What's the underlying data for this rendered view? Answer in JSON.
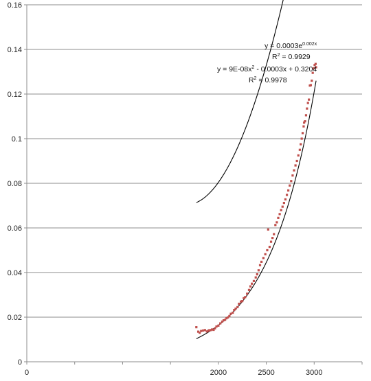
{
  "chart_data": {
    "type": "scatter",
    "title": "",
    "xlabel": "",
    "ylabel": "",
    "xlim": [
      0,
      3500
    ],
    "ylim": [
      0,
      0.16
    ],
    "x_ticks": [
      0,
      500,
      1000,
      1500,
      2000,
      2500,
      3000,
      3500
    ],
    "x_tick_labels": [
      "0",
      "",
      "",
      "",
      "2000",
      "2500",
      "3000",
      ""
    ],
    "y_ticks": [
      0,
      0.02,
      0.04,
      0.06,
      0.08,
      0.1,
      0.12,
      0.14,
      0.16
    ],
    "y_tick_labels": [
      "0",
      "0.02",
      "0.04",
      "0.06",
      "0.08",
      "0.1",
      "0.12",
      "0.14",
      "0.16"
    ],
    "grid": "horizontal",
    "legend": "none",
    "marker_color": "#c0504d",
    "line_color": "#000000",
    "series": [
      {
        "type": "scatter",
        "points": [
          [
            1770,
            0.0155
          ],
          [
            1790,
            0.0135
          ],
          [
            1805,
            0.013
          ],
          [
            1820,
            0.0138
          ],
          [
            1840,
            0.014
          ],
          [
            1860,
            0.0142
          ],
          [
            1880,
            0.0136
          ],
          [
            1895,
            0.0139
          ],
          [
            1905,
            0.0141
          ],
          [
            1920,
            0.0142
          ],
          [
            1935,
            0.0145
          ],
          [
            1950,
            0.0143
          ],
          [
            1965,
            0.015
          ],
          [
            1980,
            0.0158
          ],
          [
            2000,
            0.0162
          ],
          [
            2020,
            0.0172
          ],
          [
            2040,
            0.018
          ],
          [
            2055,
            0.0186
          ],
          [
            2070,
            0.0188
          ],
          [
            2085,
            0.0195
          ],
          [
            2100,
            0.0199
          ],
          [
            2115,
            0.0205
          ],
          [
            2130,
            0.0215
          ],
          [
            2150,
            0.022
          ],
          [
            2165,
            0.0232
          ],
          [
            2180,
            0.0238
          ],
          [
            2200,
            0.0245
          ],
          [
            2215,
            0.026
          ],
          [
            2235,
            0.027
          ],
          [
            2250,
            0.0272
          ],
          [
            2265,
            0.0285
          ],
          [
            2280,
            0.029
          ],
          [
            2300,
            0.0305
          ],
          [
            2320,
            0.0322
          ],
          [
            2335,
            0.0338
          ],
          [
            2350,
            0.035
          ],
          [
            2370,
            0.0362
          ],
          [
            2390,
            0.0378
          ],
          [
            2405,
            0.0392
          ],
          [
            2420,
            0.041
          ],
          [
            2435,
            0.0433
          ],
          [
            2450,
            0.0448
          ],
          [
            2470,
            0.0465
          ],
          [
            2490,
            0.0482
          ],
          [
            2510,
            0.05
          ],
          [
            2520,
            0.0593
          ],
          [
            2535,
            0.0515
          ],
          [
            2550,
            0.0538
          ],
          [
            2565,
            0.0555
          ],
          [
            2580,
            0.0572
          ],
          [
            2595,
            0.0613
          ],
          [
            2610,
            0.0625
          ],
          [
            2625,
            0.0645
          ],
          [
            2640,
            0.0662
          ],
          [
            2655,
            0.068
          ],
          [
            2670,
            0.0695
          ],
          [
            2685,
            0.0712
          ],
          [
            2700,
            0.0728
          ],
          [
            2715,
            0.0748
          ],
          [
            2730,
            0.0768
          ],
          [
            2745,
            0.079
          ],
          [
            2760,
            0.081
          ],
          [
            2775,
            0.0835
          ],
          [
            2790,
            0.0858
          ],
          [
            2805,
            0.088
          ],
          [
            2820,
            0.09
          ],
          [
            2835,
            0.0925
          ],
          [
            2850,
            0.095
          ],
          [
            2860,
            0.0975
          ],
          [
            2870,
            0.1
          ],
          [
            2880,
            0.1025
          ],
          [
            2890,
            0.1055
          ],
          [
            2895,
            0.1072
          ],
          [
            2905,
            0.1078
          ],
          [
            2915,
            0.1105
          ],
          [
            2925,
            0.1135
          ],
          [
            2935,
            0.116
          ],
          [
            2945,
            0.1175
          ],
          [
            2955,
            0.1238
          ],
          [
            2965,
            0.124
          ],
          [
            2975,
            0.126
          ],
          [
            2985,
            0.1295
          ],
          [
            2995,
            0.1315
          ],
          [
            3005,
            0.133
          ],
          [
            3015,
            0.1335
          ],
          [
            3020,
            0.132
          ]
        ]
      },
      {
        "type": "exponential-trendline",
        "equation": "y = 0.0003e^(0.002x)",
        "coefficient": 0.0003,
        "exponent": 0.002,
        "r_squared": 0.9929
      },
      {
        "type": "polynomial-trendline",
        "equation": "y = 9E-08x^2 - 0.0003x + 0.3204",
        "coefficients": [
          9e-08,
          -0.0003,
          0.3204
        ],
        "r_squared": 0.9978
      }
    ],
    "annotations": {
      "exp_eq_main": "y = 0.0003e",
      "exp_eq_sup": "0.002x",
      "exp_r2_label": "R",
      "exp_r2_sup": "2",
      "exp_r2_value": " = 0.9929",
      "poly_eq_a": "y = 9E-08x",
      "poly_eq_sup": "2",
      "poly_eq_b": " - 0.0003x + 0.3204",
      "poly_r2_label": "R",
      "poly_r2_sup": "2",
      "poly_r2_value": " = 0.9978"
    }
  }
}
